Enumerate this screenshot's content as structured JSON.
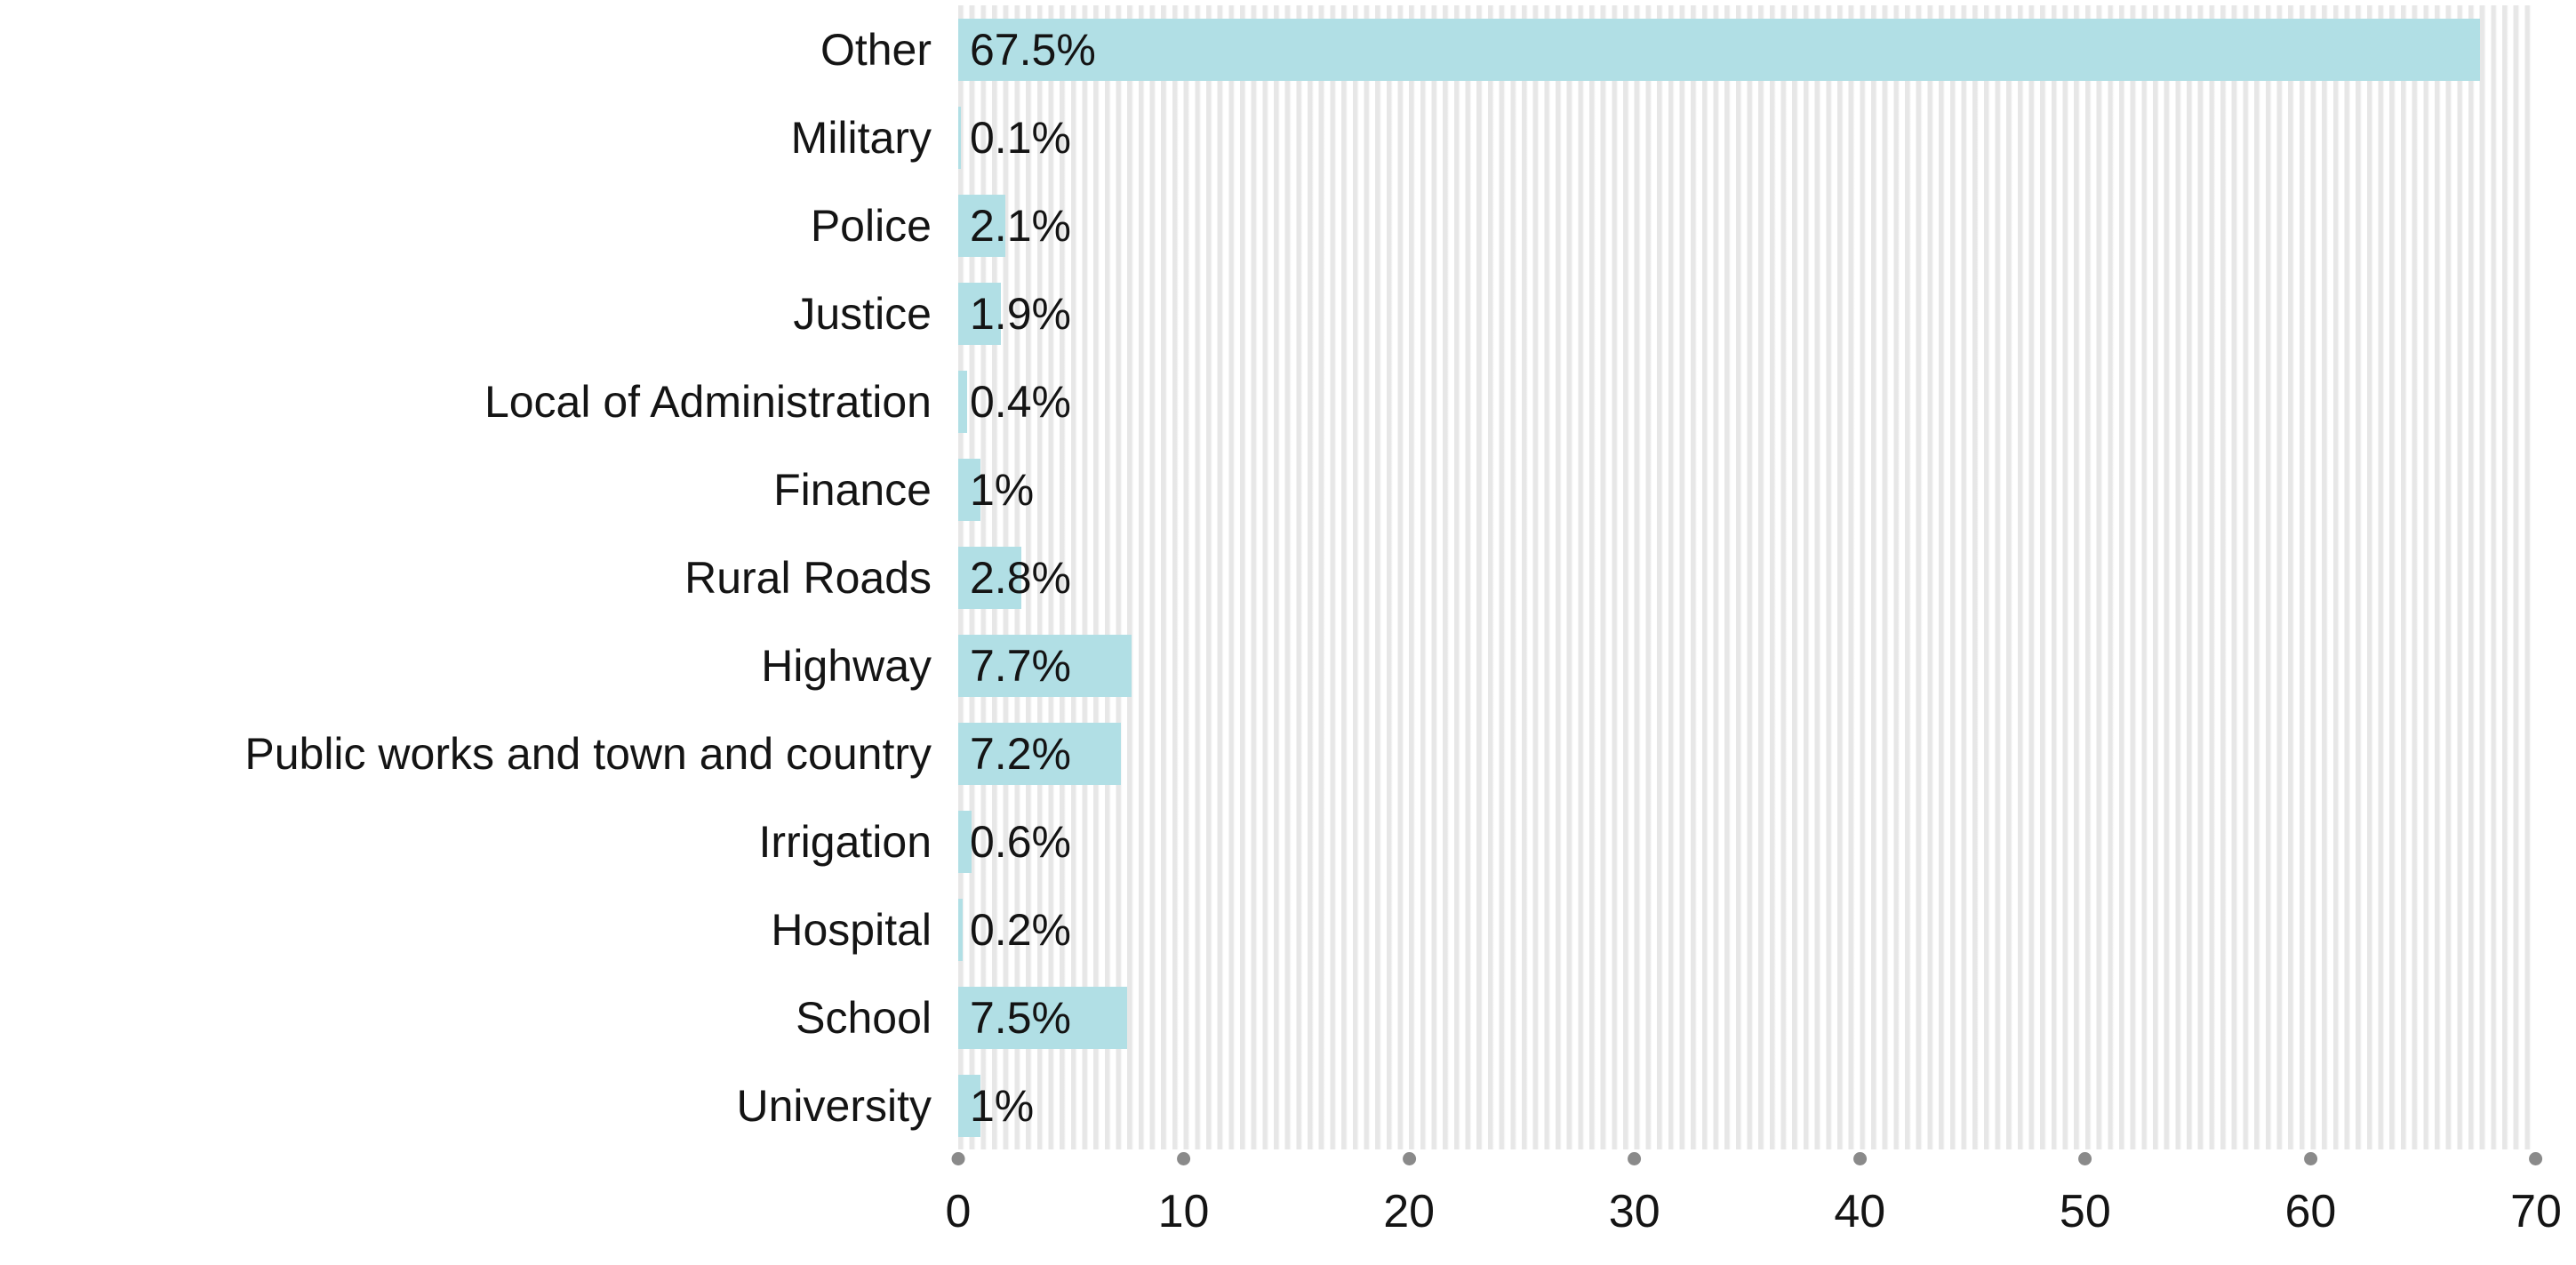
{
  "chart_data": {
    "type": "bar",
    "orientation": "horizontal",
    "title": "",
    "xlabel": "",
    "ylabel": "",
    "categories": [
      "Other",
      "Military",
      "Police",
      "Justice",
      "Local of Administration",
      "Finance",
      "Rural Roads",
      "Highway",
      "Public works and town and country",
      "Irrigation",
      "Hospital",
      "School",
      "University"
    ],
    "values": [
      67.5,
      0.1,
      2.1,
      1.9,
      0.4,
      1,
      2.8,
      7.7,
      7.2,
      0.6,
      0.2,
      7.5,
      1
    ],
    "value_labels": [
      "67.5%",
      "0.1%",
      "2.1%",
      "1.9%",
      "0.4%",
      "1%",
      "2.8%",
      "7.7%",
      "7.2%",
      "0.6%",
      "0.2%",
      "7.5%",
      "1%"
    ],
    "x_ticks": [
      0,
      10,
      20,
      30,
      40,
      50,
      60,
      70
    ],
    "xlim": [
      0,
      70
    ],
    "grid": "vertical minor stripes every 0.5",
    "legend": "none",
    "colors": {
      "bar": "#b1dfe5",
      "grid_stripe": "#e7e7e7",
      "tick_dot": "#8a8a8a",
      "text": "#141414",
      "background": "#ffffff"
    }
  }
}
